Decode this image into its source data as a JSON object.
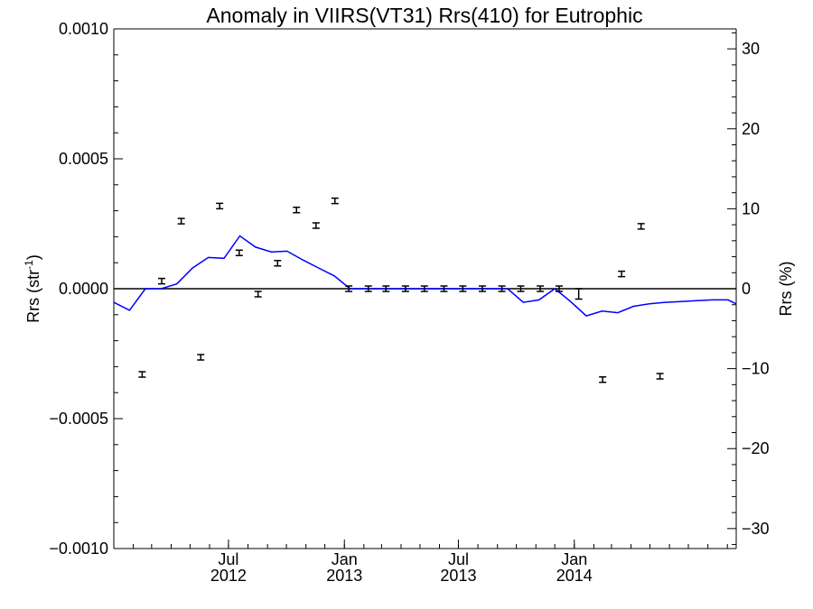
{
  "chart_data": {
    "type": "line",
    "title": "Anomaly in VIIRS(VT31) Rrs(410) for Eutrophic",
    "ylabel_left": {
      "base": "Rrs (str",
      "sup": "-1",
      "end": ")"
    },
    "ylabel_right": "Rrs (%)",
    "x_range": [
      "2012-01-01",
      "2014-09-15"
    ],
    "y_left_range": [
      -0.001,
      0.001
    ],
    "y_right_range": [
      -32.5,
      32.5
    ],
    "grid": false,
    "zero_line": true,
    "line_color": "#0000ff",
    "marker_color": "#000000",
    "x_ticks": [
      {
        "date": "2012-07-01",
        "line1": "Jul",
        "line2": "2012"
      },
      {
        "date": "2013-01-01",
        "line1": "Jan",
        "line2": "2013"
      },
      {
        "date": "2013-07-01",
        "line1": "Jul",
        "line2": "2013"
      },
      {
        "date": "2014-01-01",
        "line1": "Jan",
        "line2": "2014"
      }
    ],
    "y_left_ticks": [
      {
        "value": 0.001,
        "label": "0.0010"
      },
      {
        "value": 0.0005,
        "label": "0.0005"
      },
      {
        "value": 0.0,
        "label": "0.0000"
      },
      {
        "value": -0.0005,
        "label": "−0.0005"
      },
      {
        "value": -0.001,
        "label": "−0.0010"
      }
    ],
    "y_right_ticks": [
      {
        "value": 30,
        "label": "30"
      },
      {
        "value": 20,
        "label": "20"
      },
      {
        "value": 10,
        "label": "10"
      },
      {
        "value": 0,
        "label": "0"
      },
      {
        "value": -10,
        "label": "−10"
      },
      {
        "value": -20,
        "label": "−20"
      },
      {
        "value": -30,
        "label": "−30"
      }
    ],
    "series": [
      {
        "axis": "right",
        "style": "line",
        "x": [
          "2012-01-01",
          "2012-01-26",
          "2012-02-20",
          "2012-03-16",
          "2012-04-10",
          "2012-05-05",
          "2012-05-30",
          "2012-06-24",
          "2012-07-19",
          "2012-08-13",
          "2012-09-07",
          "2012-10-02",
          "2012-10-27",
          "2012-11-21",
          "2012-12-16",
          "2013-01-10",
          "2013-02-04",
          "2013-03-01",
          "2013-03-26",
          "2013-04-20",
          "2013-05-15",
          "2013-06-09",
          "2013-07-04",
          "2013-07-29",
          "2013-08-23",
          "2013-09-17",
          "2013-10-12",
          "2013-11-06",
          "2013-12-01",
          "2013-12-26",
          "2014-01-20",
          "2014-02-14",
          "2014-03-11",
          "2014-04-05",
          "2014-04-30",
          "2014-05-25",
          "2014-06-19",
          "2014-07-14",
          "2014-08-08",
          "2014-09-02",
          "2014-09-15"
        ],
        "y": [
          -1.7,
          -2.7,
          0.0,
          0.0,
          0.6,
          2.6,
          3.9,
          3.8,
          6.6,
          5.2,
          4.6,
          4.7,
          3.6,
          2.6,
          1.6,
          0.0,
          0.0,
          0.0,
          0.0,
          0.0,
          0.0,
          0.0,
          0.0,
          0.0,
          0.0,
          0.0,
          -1.7,
          -1.4,
          0.0,
          -1.6,
          -3.4,
          -2.8,
          -3.0,
          -2.2,
          -1.9,
          -1.7,
          -1.6,
          -1.5,
          -1.4,
          -1.4,
          -1.9
        ]
      },
      {
        "axis": "left",
        "style": "errorbar",
        "x": [
          "2012-02-15",
          "2012-03-17",
          "2012-04-17",
          "2012-05-18",
          "2012-06-17",
          "2012-07-18",
          "2012-08-17",
          "2012-09-17",
          "2012-10-17",
          "2012-11-17",
          "2012-12-17",
          "2013-01-08",
          "2013-02-08",
          "2013-03-08",
          "2013-04-08",
          "2013-05-08",
          "2013-06-08",
          "2013-07-08",
          "2013-08-08",
          "2013-09-08",
          "2013-10-08",
          "2013-11-08",
          "2013-12-08",
          "2014-01-08",
          "2014-02-15",
          "2014-03-17",
          "2014-04-17",
          "2014-05-17"
        ],
        "y": [
          -0.00033,
          2.9e-05,
          0.00026,
          -0.000264,
          0.000318,
          0.000138,
          -2.1e-05,
          9.8e-05,
          0.000303,
          0.000243,
          0.000338,
          0.0,
          0.0,
          0.0,
          0.0,
          0.0,
          0.0,
          0.0,
          0.0,
          0.0,
          0.0,
          0.0,
          0.0,
          -2e-05,
          -0.00035,
          5.7e-05,
          0.00024,
          -0.000337
        ],
        "err": [
          1e-05,
          1e-05,
          8e-06,
          8e-06,
          1e-05,
          8e-06,
          6e-06,
          8e-06,
          8e-06,
          1e-05,
          1e-05,
          1e-05,
          1e-05,
          1e-05,
          6e-06,
          6e-06,
          6e-06,
          6e-06,
          6e-06,
          6e-06,
          8e-06,
          1e-05,
          1e-05,
          2e-05,
          1e-05,
          8e-06,
          8e-06,
          6e-06
        ]
      }
    ]
  }
}
